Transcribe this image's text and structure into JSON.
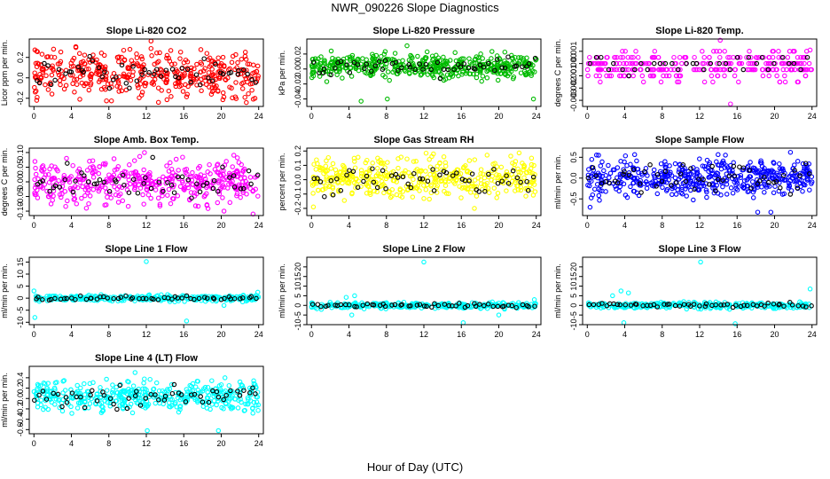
{
  "chart_title": "NWR_090226  Slope Diagnostics",
  "shared_xlabel": "Hour of Day (UTC)",
  "chart_data": [
    {
      "type": "scatter",
      "title": "Slope Li-820 CO2",
      "ylabel": "Licor ppm per min.",
      "color": "#ff0000",
      "xlim": [
        -0.5,
        24.5
      ],
      "ylim": [
        -0.28,
        0.38
      ],
      "xticks": [
        0,
        4,
        8,
        12,
        16,
        20,
        24
      ],
      "yticks": [
        -0.2,
        0.0,
        0.2
      ],
      "yticklabels": [
        "-0.2",
        "0.0",
        "0.2"
      ],
      "spread": 0.11,
      "center": 0.04,
      "npoints": 420,
      "nblack": 55,
      "outliers": [
        [
          0.3,
          -0.22
        ],
        [
          4.9,
          -0.21
        ],
        [
          12.5,
          0.36
        ],
        [
          13.3,
          -0.24
        ],
        [
          23.6,
          -0.2
        ]
      ]
    },
    {
      "type": "scatter",
      "title": "Slope Li-820 Pressure",
      "ylabel": "kPa per min.",
      "color": "#00bb00",
      "xlim": [
        -0.5,
        24.5
      ],
      "ylim": [
        -0.05,
        0.04
      ],
      "xticks": [
        0,
        4,
        8,
        12,
        16,
        20,
        24
      ],
      "yticks": [
        -0.04,
        -0.02,
        0.0,
        0.02
      ],
      "yticklabels": [
        "-0.04",
        "-0.02",
        "0.00",
        "0.02"
      ],
      "spread": 0.008,
      "center": 0.003,
      "npoints": 480,
      "nblack": 55,
      "outliers": [
        [
          5.3,
          -0.043
        ],
        [
          10.2,
          0.031
        ],
        [
          8.1,
          -0.04
        ],
        [
          2.1,
          0.024
        ],
        [
          23.7,
          -0.04
        ]
      ]
    },
    {
      "type": "scatter",
      "title": "Slope Li-820 Temp.",
      "ylabel": "degrees C per min.",
      "color": "#ff00ff",
      "xlim": [
        -0.5,
        24.5
      ],
      "ylim": [
        -0.0035,
        0.002
      ],
      "xticks": [
        0,
        4,
        8,
        12,
        16,
        20,
        24
      ],
      "yticks": [
        -0.003,
        -0.002,
        -0.001,
        0.0,
        0.001
      ],
      "yticklabels": [
        "-0.003",
        "-0.002",
        "-0.001",
        "0.000",
        "0.001"
      ],
      "spread": 0.0006,
      "center": -0.0002,
      "npoints": 300,
      "nblack": 35,
      "quantize": 0.0005,
      "outliers": [
        [
          14.2,
          0.0019
        ],
        [
          15.3,
          -0.0033
        ],
        [
          23.8,
          0.0011
        ]
      ]
    },
    {
      "type": "scatter",
      "title": "Slope Amb. Box Temp.",
      "ylabel": "degrees C per min.",
      "color": "#ff00ff",
      "xlim": [
        -0.5,
        24.5
      ],
      "ylim": [
        -0.115,
        0.115
      ],
      "xticks": [
        0,
        4,
        8,
        12,
        16,
        20,
        24
      ],
      "yticks": [
        -0.1,
        -0.05,
        0.0,
        0.05,
        0.1
      ],
      "yticklabels": [
        "-0.10",
        "-0.05",
        "0.00",
        "0.05",
        "0.10"
      ],
      "spread": 0.035,
      "center": 0.0,
      "npoints": 420,
      "nblack": 55,
      "outliers": [
        [
          23.4,
          -0.11
        ],
        [
          20.3,
          -0.1
        ],
        [
          11.8,
          0.1
        ]
      ]
    },
    {
      "type": "scatter",
      "title": "Slope Gas Stream RH",
      "ylabel": "percent per min.",
      "color": "#ffff00",
      "xlim": [
        -0.5,
        24.5
      ],
      "ylim": [
        -0.25,
        0.22
      ],
      "xticks": [
        0,
        4,
        8,
        12,
        16,
        20,
        24
      ],
      "yticks": [
        -0.2,
        -0.1,
        0.0,
        0.1,
        0.2
      ],
      "yticklabels": [
        "-0.2",
        "-0.1",
        "0.0",
        "0.1",
        "0.2"
      ],
      "spread": 0.07,
      "center": 0.01,
      "npoints": 420,
      "nblack": 55,
      "outliers": [
        [
          17.4,
          -0.2
        ],
        [
          0.2,
          -0.19
        ],
        [
          23.5,
          0.15
        ]
      ]
    },
    {
      "type": "scatter",
      "title": "Slope Sample Flow",
      "ylabel": "ml/min per min.",
      "color": "#0000ff",
      "xlim": [
        -0.5,
        24.5
      ],
      "ylim": [
        -0.9,
        0.72
      ],
      "xticks": [
        0,
        4,
        8,
        12,
        16,
        20,
        24
      ],
      "yticks": [
        -0.5,
        0.0,
        0.5
      ],
      "yticklabels": [
        "-0.5",
        "0.0",
        "0.5"
      ],
      "spread": 0.22,
      "center": 0.0,
      "npoints": 480,
      "nblack": 55,
      "outliers": [
        [
          18.2,
          -0.82
        ],
        [
          19.6,
          -0.82
        ],
        [
          21.7,
          0.62
        ],
        [
          1.2,
          0.55
        ],
        [
          0.3,
          -0.7
        ]
      ]
    },
    {
      "type": "scatter",
      "title": "Slope Line 1 Flow",
      "ylabel": "ml/min per min.",
      "color": "#00ffff",
      "xlim": [
        -0.5,
        24.5
      ],
      "ylim": [
        -11,
        17
      ],
      "xticks": [
        0,
        4,
        8,
        12,
        16,
        20,
        24
      ],
      "yticks": [
        -10,
        -5,
        0,
        5,
        10,
        15
      ],
      "yticklabels": [
        "-10",
        "-5",
        "0",
        "5",
        "10",
        "15"
      ],
      "spread": 0.6,
      "center": 0.0,
      "npoints": 300,
      "nblack": 55,
      "outliers": [
        [
          12.0,
          15.2
        ],
        [
          0.1,
          -8
        ],
        [
          0.0,
          3
        ],
        [
          16.3,
          -9.5
        ],
        [
          23.9,
          2.5
        ],
        [
          20.3,
          -3
        ]
      ]
    },
    {
      "type": "scatter",
      "title": "Slope Line 2 Flow",
      "ylabel": "ml/min per min.",
      "color": "#00ffff",
      "xlim": [
        -0.5,
        24.5
      ],
      "ylim": [
        -10,
        25
      ],
      "xticks": [
        0,
        4,
        8,
        12,
        16,
        20,
        24
      ],
      "yticks": [
        -10,
        -5,
        0,
        5,
        10,
        15,
        20
      ],
      "yticklabels": [
        "-10",
        "-5",
        "0",
        "5",
        "10",
        "15",
        "20"
      ],
      "spread": 0.8,
      "center": 0.0,
      "npoints": 300,
      "nblack": 55,
      "outliers": [
        [
          12.0,
          22.5
        ],
        [
          3.7,
          4.2
        ],
        [
          4.3,
          -5
        ],
        [
          4.6,
          5
        ],
        [
          16.2,
          -9
        ],
        [
          20.0,
          -5
        ],
        [
          23.8,
          3
        ]
      ]
    },
    {
      "type": "scatter",
      "title": "Slope Line 3 Flow",
      "ylabel": "ml/min per min.",
      "color": "#00ffff",
      "xlim": [
        -0.5,
        24.5
      ],
      "ylim": [
        -10,
        25
      ],
      "xticks": [
        0,
        4,
        8,
        12,
        16,
        20,
        24
      ],
      "yticks": [
        -10,
        -5,
        0,
        5,
        10,
        15,
        20
      ],
      "yticklabels": [
        "-10",
        "-5",
        "0",
        "5",
        "10",
        "15",
        "20"
      ],
      "spread": 0.8,
      "center": 0.0,
      "npoints": 300,
      "nblack": 55,
      "outliers": [
        [
          12.1,
          22.5
        ],
        [
          3.9,
          -9
        ],
        [
          3.6,
          7.5
        ],
        [
          4.4,
          6.5
        ],
        [
          2.7,
          5
        ],
        [
          15.8,
          -9.5
        ],
        [
          23.8,
          8.5
        ]
      ]
    },
    {
      "type": "scatter",
      "title": "Slope Line 4 (LT) Flow",
      "ylabel": "ml/min per min.",
      "color": "#00ffff",
      "xlim": [
        -0.5,
        24.5
      ],
      "ylim": [
        -0.68,
        0.62
      ],
      "xticks": [
        0,
        4,
        8,
        12,
        16,
        20,
        24
      ],
      "yticks": [
        -0.6,
        -0.4,
        -0.2,
        0.0,
        0.2,
        0.4
      ],
      "yticklabels": [
        "-0.6",
        "-0.4",
        "-0.2",
        "0.0",
        "0.2",
        "0.4"
      ],
      "spread": 0.13,
      "center": 0.04,
      "npoints": 420,
      "nblack": 55,
      "outliers": [
        [
          12.1,
          -0.62
        ],
        [
          19.7,
          -0.62
        ],
        [
          10.8,
          0.5
        ],
        [
          20.4,
          0.4
        ],
        [
          22.0,
          0.32
        ]
      ]
    }
  ]
}
